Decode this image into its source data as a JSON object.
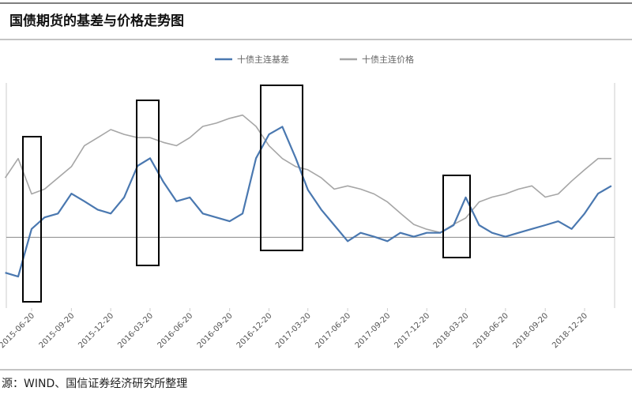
{
  "chart_data": {
    "type": "line",
    "title": "国债期货的基差与价格走势图",
    "source": "源：WIND、国信证券经济研究所整理",
    "x": [
      "2015-04-20",
      "2015-05-20",
      "2015-06-20",
      "2015-07-20",
      "2015-08-20",
      "2015-09-20",
      "2015-10-20",
      "2015-11-20",
      "2015-12-20",
      "2016-01-20",
      "2016-02-20",
      "2016-03-20",
      "2016-04-20",
      "2016-05-20",
      "2016-06-20",
      "2016-07-20",
      "2016-08-20",
      "2016-09-20",
      "2016-10-20",
      "2016-11-20",
      "2016-12-20",
      "2017-01-20",
      "2017-02-20",
      "2017-03-20",
      "2017-04-20",
      "2017-05-20",
      "2017-06-20",
      "2017-07-20",
      "2017-08-20",
      "2017-09-20",
      "2017-10-20",
      "2017-11-20",
      "2017-12-20",
      "2018-01-20",
      "2018-02-20",
      "2018-03-20",
      "2018-04-20",
      "2018-05-20",
      "2018-06-20",
      "2018-07-20",
      "2018-08-20",
      "2018-09-20",
      "2018-10-20",
      "2018-11-20",
      "2018-12-20",
      "2019-01-20",
      "2019-02-20"
    ],
    "xticks": [
      "2015-06-20",
      "2015-09-20",
      "2015-12-20",
      "2016-03-20",
      "2016-06-20",
      "2016-09-20",
      "2016-12-20",
      "2017-03-20",
      "2017-06-20",
      "2017-09-20",
      "2017-12-20",
      "2018-03-20",
      "2018-06-20",
      "2018-09-20",
      "2018-12-20"
    ],
    "ylim": [
      -1.1,
      2.4
    ],
    "y2lim": [
      88,
      102
    ],
    "legend": "top",
    "series": [
      {
        "name": "十债主连基差",
        "color": "#4a78b0",
        "values": [
          -0.55,
          -0.61,
          0.13,
          0.31,
          0.37,
          0.68,
          0.56,
          0.43,
          0.37,
          0.62,
          1.11,
          1.23,
          0.86,
          0.56,
          0.62,
          0.37,
          0.31,
          0.25,
          0.37,
          1.23,
          1.6,
          1.72,
          1.23,
          0.74,
          0.43,
          0.19,
          -0.06,
          0.07,
          0.01,
          -0.06,
          0.07,
          0.01,
          0.07,
          0.07,
          0.19,
          0.62,
          0.19,
          0.07,
          0.01,
          0.07,
          0.13,
          0.19,
          0.25,
          0.13,
          0.37,
          0.68,
          0.8
        ]
      },
      {
        "name": "十债主连价格",
        "color": "#a6a6a6",
        "axis": "y2",
        "values": [
          96.1,
          97.3,
          95.1,
          95.4,
          96.1,
          96.8,
          98.1,
          98.6,
          99.1,
          98.8,
          98.6,
          98.6,
          98.3,
          98.1,
          98.6,
          99.3,
          99.5,
          99.8,
          100.0,
          99.3,
          98.1,
          97.3,
          96.8,
          96.6,
          96.1,
          95.4,
          95.6,
          95.4,
          95.1,
          94.6,
          93.9,
          93.2,
          92.9,
          92.7,
          93.2,
          93.6,
          94.6,
          94.9,
          95.1,
          95.4,
          95.6,
          94.9,
          95.1,
          95.9,
          96.6,
          97.3,
          97.3
        ]
      }
    ]
  }
}
